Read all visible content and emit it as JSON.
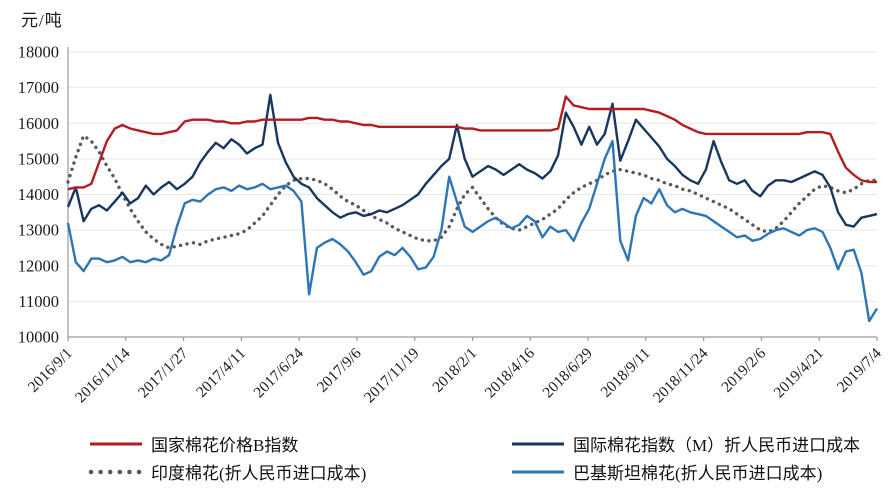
{
  "chart_data": {
    "type": "line",
    "y_unit": "元/吨",
    "grid": true,
    "legend_position": "bottom",
    "y_axis": {
      "min": 10000,
      "max": 18000,
      "step": 1000
    },
    "x_tick_labels": [
      "2016/9/1",
      "2016/11/14",
      "2017/1/27",
      "2017/4/11",
      "2017/6/24",
      "2017/9/6",
      "2017/11/19",
      "2018/2/1",
      "2018/4/16",
      "2018/6/29",
      "2018/9/11",
      "2018/11/24",
      "2019/2/6",
      "2019/4/21",
      "2019/7/4"
    ],
    "x_range": [
      "2016/9/1",
      "2019/7/4"
    ],
    "series": [
      {
        "name": "国家棉花价格B指数",
        "color": "#B01E23",
        "style": "solid",
        "values": [
          14150,
          14200,
          14200,
          14300,
          14900,
          15500,
          15850,
          15950,
          15850,
          15800,
          15750,
          15700,
          15700,
          15750,
          15800,
          16050,
          16100,
          16100,
          16100,
          16050,
          16050,
          16000,
          16000,
          16050,
          16050,
          16100,
          16100,
          16100,
          16100,
          16100,
          16100,
          16150,
          16150,
          16100,
          16100,
          16050,
          16050,
          16000,
          15950,
          15950,
          15900,
          15900,
          15900,
          15900,
          15900,
          15900,
          15900,
          15900,
          15900,
          15900,
          15900,
          15850,
          15850,
          15800,
          15800,
          15800,
          15800,
          15800,
          15800,
          15800,
          15800,
          15800,
          15800,
          15850,
          16750,
          16500,
          16450,
          16400,
          16400,
          16400,
          16400,
          16400,
          16400,
          16400,
          16400,
          16350,
          16300,
          16200,
          16100,
          15950,
          15850,
          15750,
          15700,
          15700,
          15700,
          15700,
          15700,
          15700,
          15700,
          15700,
          15700,
          15700,
          15700,
          15700,
          15700,
          15750,
          15750,
          15750,
          15700,
          15200,
          14750,
          14550,
          14400,
          14350,
          14350
        ]
      },
      {
        "name": "国际棉花指数（M）折人民币进口成本",
        "color": "#17375E",
        "style": "solid",
        "values": [
          13650,
          14200,
          13250,
          13600,
          13700,
          13550,
          13800,
          14050,
          13750,
          13900,
          14250,
          14000,
          14200,
          14350,
          14150,
          14300,
          14500,
          14900,
          15200,
          15450,
          15300,
          15550,
          15400,
          15150,
          15300,
          15400,
          16800,
          15450,
          14900,
          14500,
          14300,
          14200,
          13900,
          13700,
          13500,
          13350,
          13450,
          13500,
          13400,
          13450,
          13550,
          13500,
          13600,
          13700,
          13850,
          14000,
          14300,
          14550,
          14800,
          15000,
          15950,
          15000,
          14500,
          14650,
          14800,
          14700,
          14550,
          14700,
          14850,
          14700,
          14600,
          14450,
          14650,
          15100,
          16300,
          15900,
          15400,
          15900,
          15400,
          15700,
          16550,
          14950,
          15500,
          16100,
          15850,
          15600,
          15350,
          15000,
          14800,
          14550,
          14400,
          14300,
          14700,
          15500,
          14900,
          14400,
          14300,
          14400,
          14100,
          13950,
          14250,
          14400,
          14400,
          14350,
          14450,
          14550,
          14650,
          14550,
          14200,
          13500,
          13150,
          13100,
          13350,
          13400,
          13450
        ]
      },
      {
        "name": "印度棉花(折人民币进口成本)",
        "color": "#595959",
        "style": "dotted",
        "values": [
          14350,
          15050,
          15650,
          15500,
          15200,
          14800,
          14450,
          14000,
          13600,
          13250,
          12950,
          12750,
          12600,
          12500,
          12550,
          12600,
          12650,
          12600,
          12700,
          12750,
          12800,
          12850,
          12900,
          13000,
          13200,
          13400,
          13700,
          14000,
          14250,
          14400,
          14450,
          14450,
          14400,
          14300,
          14150,
          13950,
          13800,
          13700,
          13550,
          13400,
          13300,
          13200,
          13050,
          12950,
          12850,
          12750,
          12700,
          12700,
          12800,
          13100,
          13600,
          14000,
          14200,
          13900,
          13600,
          13350,
          13150,
          13050,
          13000,
          13100,
          13200,
          13300,
          13450,
          13600,
          13850,
          14050,
          14200,
          14300,
          14400,
          14550,
          14650,
          14700,
          14650,
          14600,
          14550,
          14450,
          14400,
          14300,
          14250,
          14150,
          14100,
          14000,
          13900,
          13800,
          13700,
          13600,
          13450,
          13300,
          13150,
          13000,
          12950,
          13050,
          13250,
          13500,
          13750,
          13950,
          14150,
          14250,
          14200,
          14100,
          14050,
          14150,
          14300,
          14400,
          14400
        ]
      },
      {
        "name": "巴基斯坦棉花(折人民币进口成本)",
        "color": "#2E75B6",
        "style": "solid",
        "values": [
          13200,
          12100,
          11850,
          12200,
          12200,
          12100,
          12150,
          12250,
          12100,
          12150,
          12100,
          12200,
          12150,
          12300,
          13100,
          13750,
          13850,
          13800,
          14000,
          14150,
          14200,
          14100,
          14250,
          14150,
          14200,
          14300,
          14150,
          14200,
          14250,
          14100,
          13800,
          11200,
          12500,
          12650,
          12750,
          12600,
          12400,
          12100,
          11750,
          11850,
          12250,
          12400,
          12300,
          12500,
          12250,
          11900,
          11950,
          12250,
          13000,
          14500,
          13800,
          13100,
          12950,
          13100,
          13250,
          13350,
          13200,
          13050,
          13150,
          13400,
          13250,
          12800,
          13100,
          12950,
          13000,
          12700,
          13200,
          13600,
          14300,
          15000,
          15500,
          12700,
          12150,
          13400,
          13900,
          13750,
          14150,
          13700,
          13500,
          13600,
          13500,
          13450,
          13400,
          13250,
          13100,
          12950,
          12800,
          12850,
          12700,
          12750,
          12900,
          13000,
          13050,
          12950,
          12850,
          13000,
          13050,
          12950,
          12500,
          11900,
          12400,
          12450,
          11800,
          10450,
          10800
        ]
      }
    ],
    "style_hints": {
      "gridline_color": "#E8E8E8",
      "axis_color": "#9A9A9A",
      "text_color": "#1a1a1a"
    }
  }
}
